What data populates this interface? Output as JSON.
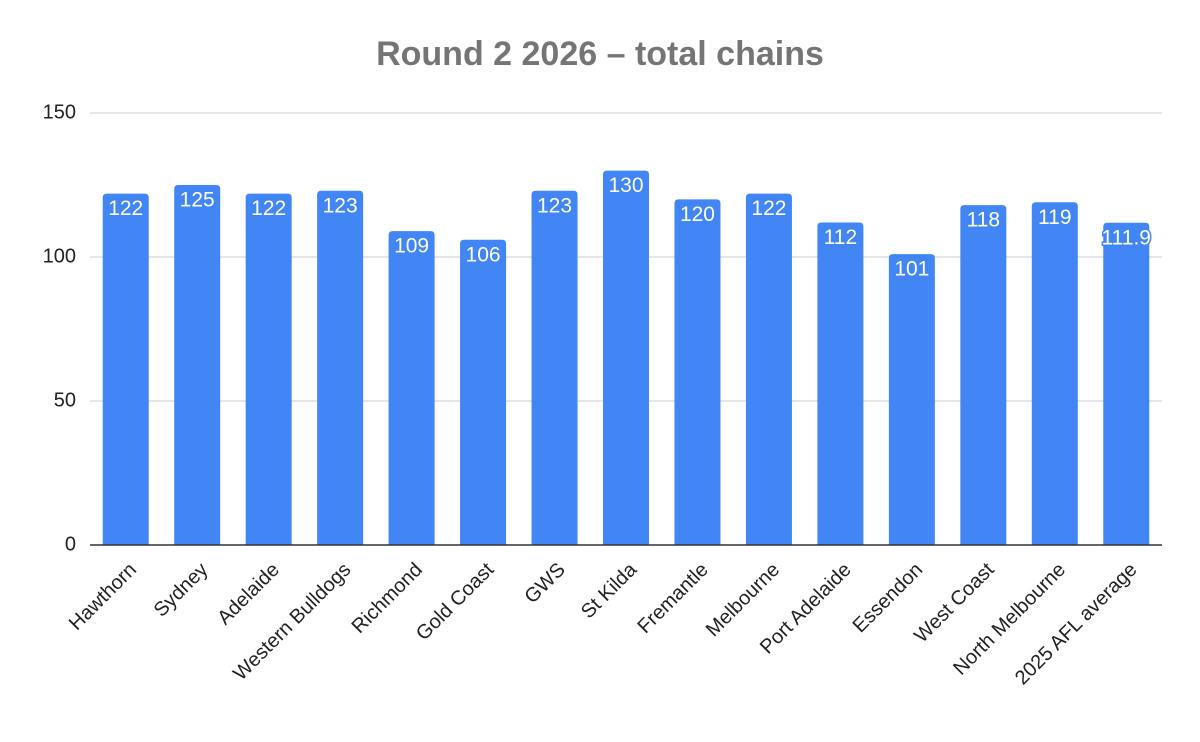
{
  "chart_data": {
    "type": "bar",
    "title": "Round 2 2026 – total chains",
    "categories": [
      "Hawthorn",
      "Sydney",
      "Adelaide",
      "Western Bulldogs",
      "Richmond",
      "Gold Coast",
      "GWS",
      "St Kilda",
      "Fremantle",
      "Melbourne",
      "Port Adelaide",
      "Essendon",
      "West Coast",
      "North Melbourne",
      "2025 AFL average"
    ],
    "values": [
      122,
      125,
      122,
      123,
      109,
      106,
      123,
      130,
      120,
      122,
      112,
      101,
      118,
      119,
      111.9
    ],
    "color": "#4285f4",
    "ylim": [
      0,
      150
    ],
    "yticks": [
      0,
      50,
      100,
      150
    ],
    "grid": true
  }
}
